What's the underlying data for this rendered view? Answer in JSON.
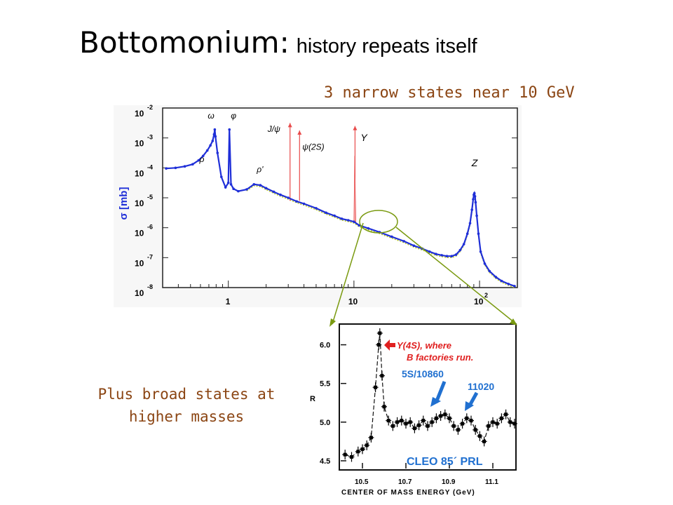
{
  "slide": {
    "title_main": "Bottomonium:",
    "title_sub": "history repeats itself",
    "note_top": "3 narrow states near 10 GeV",
    "note_left": "Plus broad states at higher masses"
  },
  "chart_data": [
    {
      "type": "scatter",
      "title": "",
      "xscale": "log",
      "xlim": [
        0.3,
        200
      ],
      "ylim_log10": [
        -8,
        -2
      ],
      "ylabel": "σ [mb]",
      "x_tick_labels": [
        "1",
        "10",
        "10",
        "2"
      ],
      "y_tick_exponents": [
        "-2",
        "-3",
        "-4",
        "-5",
        "-6",
        "-7",
        "-8"
      ],
      "y_tick_base": "10",
      "annotations": [
        {
          "text": "ω",
          "x": 0.78
        },
        {
          "text": "φ",
          "x": 1.02
        },
        {
          "text": "ρ",
          "x": 0.62
        },
        {
          "text": "ρ'",
          "x": 1.6
        },
        {
          "text": "J/ψ",
          "x": 3.1
        },
        {
          "text": "ψ(2S)",
          "x": 3.69
        },
        {
          "text": "Υ",
          "x": 10.2
        },
        {
          "text": "Z",
          "x": 91
        }
      ],
      "series": [
        {
          "color": "#1f2fd8",
          "x": [
            0.32,
            0.38,
            0.45,
            0.52,
            0.58,
            0.63,
            0.68,
            0.72,
            0.75,
            0.77,
            0.78,
            0.79,
            0.82,
            0.88,
            0.95,
            1.0,
            1.02,
            1.05,
            1.1,
            1.2,
            1.4,
            1.6,
            1.8,
            2.0,
            2.3,
            2.6,
            3.0,
            3.5,
            4.0,
            5.0,
            6.0,
            7.0,
            8.0,
            9.0,
            10.0,
            11.0,
            13.0,
            16.0,
            20.0,
            25.0,
            30.0,
            35.0,
            40.0,
            45.0,
            50.0,
            55.0,
            60.0,
            65.0,
            70.0,
            75.0,
            80.0,
            84.0,
            87.0,
            89.0,
            90.0,
            91.0,
            92.0,
            93.0,
            95.0,
            98.0,
            102.0,
            110.0,
            120.0,
            135.0,
            150.0,
            170.0,
            190.0
          ],
          "log10_y": [
            -4.02,
            -4.0,
            -3.95,
            -3.88,
            -3.75,
            -3.6,
            -3.42,
            -3.25,
            -3.1,
            -2.88,
            -2.72,
            -2.95,
            -3.5,
            -4.3,
            -4.65,
            -4.5,
            -2.72,
            -4.55,
            -4.7,
            -4.78,
            -4.72,
            -4.55,
            -4.58,
            -4.68,
            -4.8,
            -4.9,
            -5.0,
            -5.12,
            -5.2,
            -5.35,
            -5.5,
            -5.6,
            -5.7,
            -5.75,
            -5.8,
            -5.92,
            -6.02,
            -6.15,
            -6.3,
            -6.45,
            -6.6,
            -6.7,
            -6.8,
            -6.88,
            -6.92,
            -6.95,
            -6.95,
            -6.9,
            -6.75,
            -6.55,
            -6.2,
            -5.85,
            -5.4,
            -5.05,
            -4.9,
            -4.85,
            -4.95,
            -5.15,
            -5.6,
            -6.2,
            -6.8,
            -7.2,
            -7.45,
            -7.65,
            -7.78,
            -7.88,
            -7.95
          ]
        }
      ]
    },
    {
      "type": "scatter",
      "title": "",
      "xlabel": "CENTER OF MASS ENERGY (GeV)",
      "ylabel": "R",
      "xlim": [
        10.4,
        11.2
      ],
      "ylim": [
        4.4,
        6.25
      ],
      "x_tick_labels": [
        "10.5",
        "10.7",
        "10.9",
        "11.1"
      ],
      "y_tick_labels": [
        "4.5",
        "5.0",
        "5.5",
        "6.0"
      ],
      "annotations": [
        {
          "text": "Υ(4S), where",
          "line2": "B factories run.",
          "color": "#e02020"
        },
        {
          "text": "5S/10860",
          "color": "#2070d0"
        },
        {
          "text": "11020",
          "color": "#2070d0"
        },
        {
          "text": "CLEO 85´ PRL",
          "color": "#2070d0"
        }
      ],
      "series": [
        {
          "color": "#000000",
          "x": [
            10.42,
            10.45,
            10.48,
            10.5,
            10.52,
            10.54,
            10.56,
            10.575,
            10.58,
            10.59,
            10.6,
            10.62,
            10.64,
            10.66,
            10.68,
            10.7,
            10.72,
            10.74,
            10.76,
            10.78,
            10.8,
            10.82,
            10.84,
            10.86,
            10.88,
            10.9,
            10.92,
            10.94,
            10.96,
            10.98,
            11.0,
            11.02,
            11.04,
            11.06,
            11.08,
            11.1,
            11.12,
            11.14,
            11.16,
            11.18,
            11.2
          ],
          "y": [
            4.58,
            4.55,
            4.62,
            4.65,
            4.7,
            4.8,
            5.45,
            6.0,
            6.15,
            5.6,
            5.2,
            5.02,
            4.95,
            5.0,
            5.02,
            4.98,
            5.0,
            4.92,
            4.96,
            5.02,
            4.95,
            5.0,
            5.05,
            5.08,
            5.1,
            5.05,
            4.95,
            4.9,
            4.98,
            5.05,
            5.02,
            4.9,
            4.82,
            4.75,
            4.95,
            5.0,
            4.98,
            5.05,
            5.1,
            5.0,
            4.98
          ]
        }
      ]
    }
  ]
}
